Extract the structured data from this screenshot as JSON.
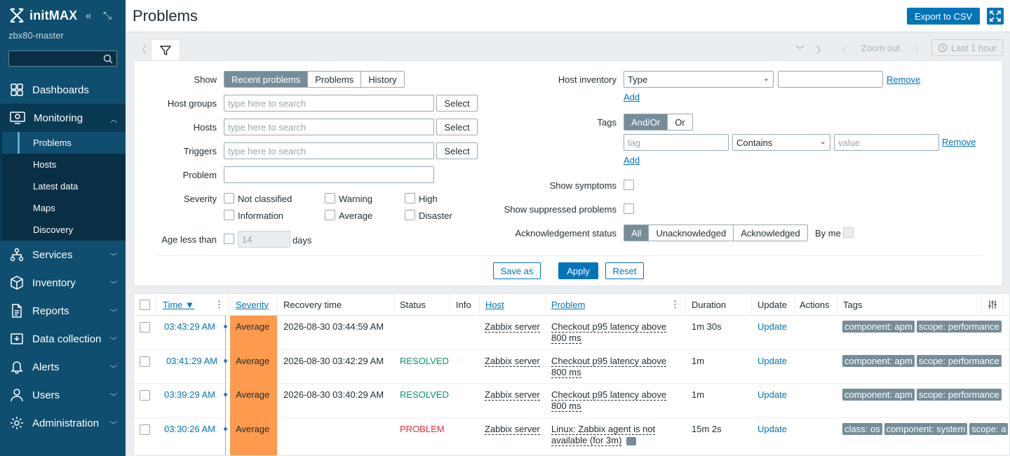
{
  "sidebar": {
    "brand": "initMAX",
    "server": "zbx80-master",
    "menu": {
      "dashboards": "Dashboards",
      "monitoring": "Monitoring",
      "monitoring_sub": [
        "Problems",
        "Hosts",
        "Latest data",
        "Maps",
        "Discovery"
      ],
      "services": "Services",
      "inventory": "Inventory",
      "reports": "Reports",
      "data_collection": "Data collection",
      "alerts": "Alerts",
      "users": "Users",
      "administration": "Administration"
    }
  },
  "header": {
    "title": "Problems",
    "export": "Export to CSV"
  },
  "timebar": {
    "zoom_out": "Zoom out",
    "period": "Last 1 hour"
  },
  "filter": {
    "show_label": "Show",
    "show_options": [
      "Recent problems",
      "Problems",
      "History"
    ],
    "host_groups_label": "Host groups",
    "hosts_label": "Hosts",
    "triggers_label": "Triggers",
    "problem_label": "Problem",
    "severity_label": "Severity",
    "age_label": "Age less than",
    "placeholder": "type here to search",
    "select": "Select",
    "severities": [
      "Not classified",
      "Warning",
      "High",
      "Information",
      "Average",
      "Disaster"
    ],
    "age_value": "14",
    "days": "days",
    "host_inventory_label": "Host inventory",
    "inventory_type": "Type",
    "remove": "Remove",
    "add": "Add",
    "tags_label": "Tags",
    "tags_options": [
      "And/Or",
      "Or"
    ],
    "tag_placeholder": "tag",
    "tag_operator": "Contains",
    "value_placeholder": "value",
    "show_symptoms": "Show symptoms",
    "show_suppressed": "Show suppressed problems",
    "ack_label": "Acknowledgement status",
    "ack_options": [
      "All",
      "Unacknowledged",
      "Acknowledged"
    ],
    "by_me": "By me",
    "save_as": "Save as",
    "apply": "Apply",
    "reset": "Reset"
  },
  "table": {
    "headers": [
      "Time ▼",
      "Severity",
      "Recovery time",
      "Status",
      "Info",
      "Host",
      "Problem",
      "Duration",
      "Update",
      "Actions",
      "Tags"
    ],
    "rows": [
      {
        "time": "03:43:29 AM",
        "severity": "Average",
        "recovery": "2026-08-30 03:44:59 AM",
        "status": "",
        "host": "Zabbix server",
        "problem": "Checkout p95 latency above 800 ms",
        "duration": "1m 30s",
        "update": "Update",
        "tags": [
          "component: apm",
          "scope: performance"
        ]
      },
      {
        "time": "03:41:29 AM",
        "severity": "Average",
        "recovery": "2026-08-30 03:42:29 AM",
        "status": "RESOLVED",
        "host": "Zabbix server",
        "problem": "Checkout p95 latency above 800 ms",
        "duration": "1m",
        "update": "Update",
        "tags": [
          "component: apm",
          "scope: performance"
        ]
      },
      {
        "time": "03:39:29 AM",
        "severity": "Average",
        "recovery": "2026-08-30 03:40:29 AM",
        "status": "RESOLVED",
        "host": "Zabbix server",
        "problem": "Checkout p95 latency above 800 ms",
        "duration": "1m",
        "update": "Update",
        "tags": [
          "component: apm",
          "scope: performance"
        ]
      },
      {
        "time": "03:30:26 AM",
        "severity": "Average",
        "recovery": "",
        "status": "PROBLEM",
        "host": "Zabbix server",
        "problem": "Linux: Zabbix agent is not available (for 3m)",
        "duration": "15m 2s",
        "update": "Update",
        "tags": [
          "class: os",
          "component: system",
          "scope: a"
        ]
      }
    ]
  },
  "colors": {
    "sidebar": "#0f4e6e",
    "accent": "#0275b8",
    "average": "#fd9a4d",
    "resolved": "#059669",
    "problem": "#e0303a"
  }
}
